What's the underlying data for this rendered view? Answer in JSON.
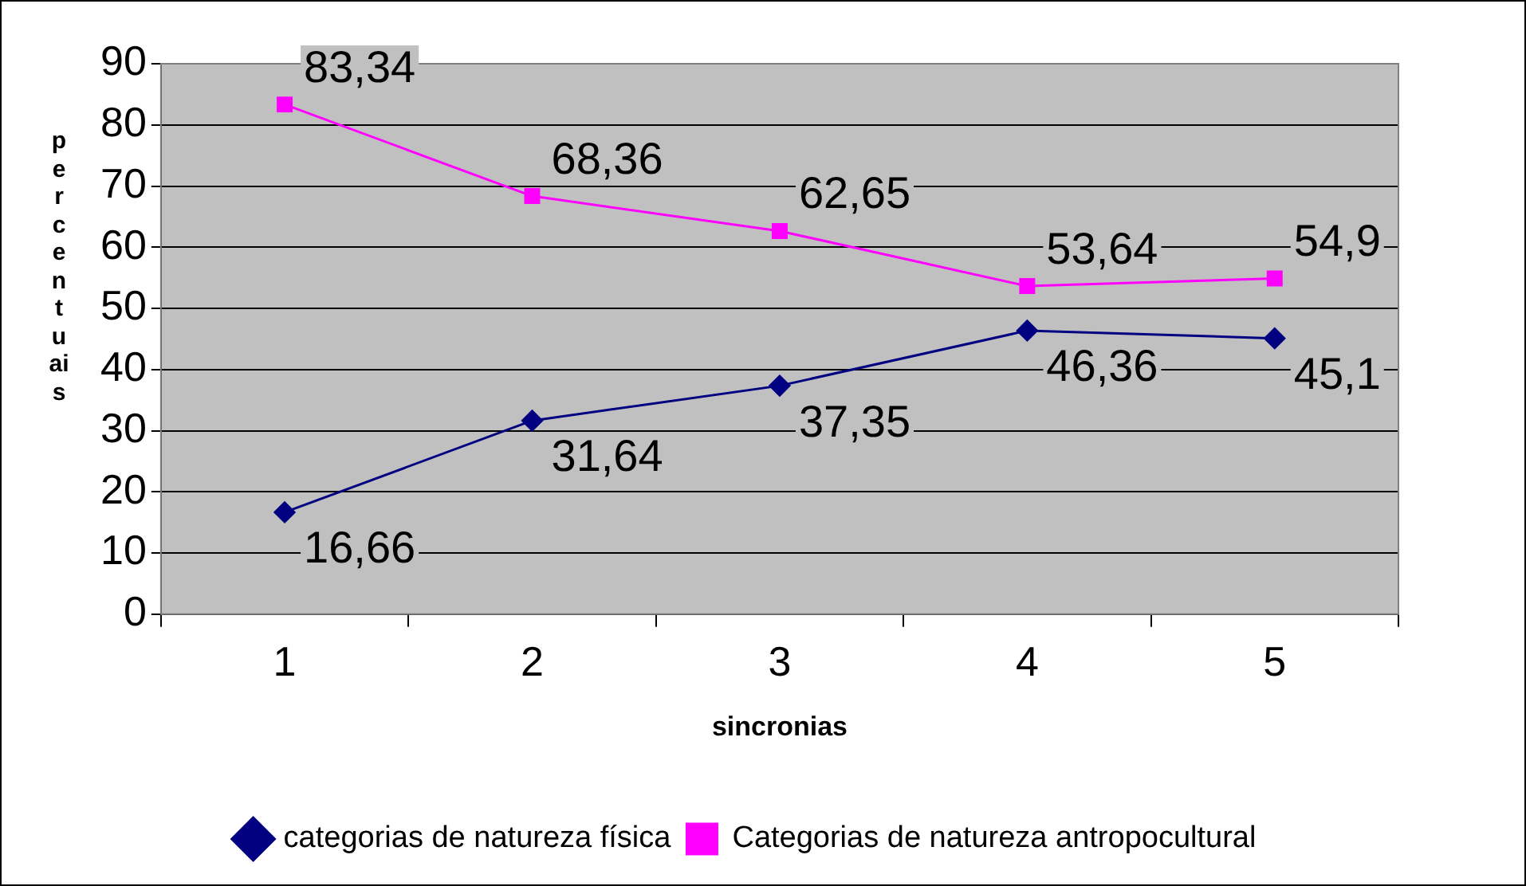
{
  "chart_data": {
    "type": "line",
    "xlabel": "sincronias",
    "ylabel": "percentuais",
    "categories": [
      "1",
      "2",
      "3",
      "4",
      "5"
    ],
    "series": [
      {
        "name": "categorias de natureza física",
        "color": "#000080",
        "marker": "diamond",
        "values": [
          16.66,
          31.64,
          37.35,
          46.36,
          45.1
        ],
        "value_labels": [
          "16,66",
          "31,64",
          "37,35",
          "46,36",
          "45,1"
        ]
      },
      {
        "name": "Categorias de natureza antropocultural",
        "color": "#ff00ff",
        "marker": "square",
        "values": [
          83.34,
          68.36,
          62.65,
          53.64,
          54.9
        ],
        "value_labels": [
          "83,34",
          "68,36",
          "62,65",
          "53,64",
          "54,9"
        ]
      }
    ],
    "ylim": [
      0,
      90
    ],
    "yticks": [
      0,
      10,
      20,
      30,
      40,
      50,
      60,
      70,
      80,
      90
    ],
    "grid": "y",
    "legend": "bottom"
  }
}
